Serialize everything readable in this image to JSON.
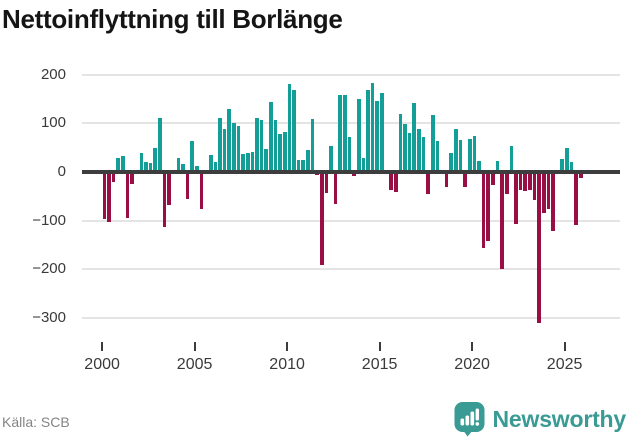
{
  "title": "Nettoinflyttning till Borlänge",
  "source": "Källa: SCB",
  "logo": {
    "text": "Newsworthy"
  },
  "chart_data": {
    "type": "bar",
    "title": "Nettoinflyttning till Borlänge",
    "x_period": "quarter",
    "x_start": "2000Q1",
    "x_end": "2025Q4",
    "values": [
      -97,
      -103,
      -20,
      28,
      33,
      -95,
      -25,
      0,
      38,
      21,
      19,
      50,
      111,
      -112,
      -68,
      0,
      29,
      16,
      -56,
      63,
      13,
      -77,
      0,
      35,
      20,
      110,
      88,
      130,
      100,
      95,
      36,
      40,
      42,
      111,
      107,
      47,
      144,
      107,
      78,
      83,
      180,
      169,
      25,
      25,
      46,
      108,
      -6,
      -190,
      -43,
      54,
      -65,
      159,
      158,
      71,
      -8,
      149,
      29,
      169,
      183,
      145,
      162,
      0,
      -36,
      -41,
      120,
      99,
      81,
      141,
      88,
      71,
      -45,
      118,
      63,
      0,
      -31,
      38,
      88,
      66,
      -31,
      68,
      74,
      22,
      -157,
      -142,
      -26,
      22,
      -200,
      -45,
      54,
      -106,
      -36,
      -40,
      -36,
      -57,
      -310,
      -84,
      -77,
      -121,
      3,
      26,
      49,
      20,
      -108,
      -12
    ],
    "x_axis_ticks": [
      "2000",
      "2005",
      "2010",
      "2015",
      "2020",
      "2025"
    ],
    "y_axis_ticks": [
      200,
      100,
      0,
      -100,
      -200,
      -300
    ],
    "ylim": [
      -350,
      230
    ],
    "grid": "horizontal",
    "legend": "none",
    "positive_color": "#149e98",
    "negative_color": "#9a0e46",
    "zero_line_color": "#3d3d3d",
    "grid_color": "#e4e4e4"
  }
}
